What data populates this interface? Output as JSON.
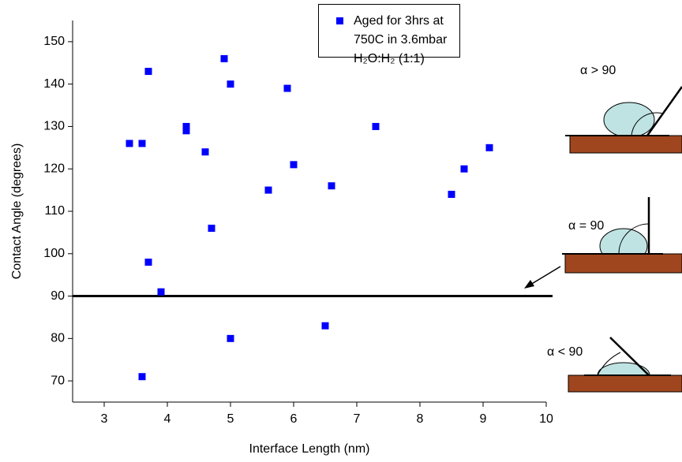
{
  "chart_data": {
    "type": "scatter",
    "x_label": "Interface Length (nm)",
    "y_label": "Contact Angle (degrees)",
    "series": [
      {
        "name": "Aged for 3hrs at 750C in 3.6mbar H₂O:H₂ (1:1)",
        "color": "#0000ff",
        "x": [
          3.4,
          3.6,
          3.7,
          3.7,
          3.9,
          3.6,
          4.3,
          4.3,
          4.6,
          4.7,
          4.9,
          5.0,
          5.0,
          5.6,
          5.9,
          6.0,
          6.5,
          6.6,
          7.3,
          8.5,
          8.7,
          9.1
        ],
        "values": [
          126,
          126,
          143,
          98,
          91,
          71,
          130,
          129,
          124,
          106,
          146,
          140,
          80,
          115,
          139,
          121,
          83,
          116,
          130,
          114,
          120,
          125
        ]
      }
    ],
    "reference_line": 90,
    "xlim": [
      2.5,
      10
    ],
    "xticks": [
      3,
      4,
      5,
      6,
      7,
      8,
      9,
      10
    ],
    "ylim": [
      65,
      155
    ],
    "yticks": [
      70,
      80,
      90,
      100,
      110,
      120,
      130,
      140,
      150
    ],
    "annotations": [
      "α > 90",
      "α = 90",
      "α < 90"
    ]
  }
}
